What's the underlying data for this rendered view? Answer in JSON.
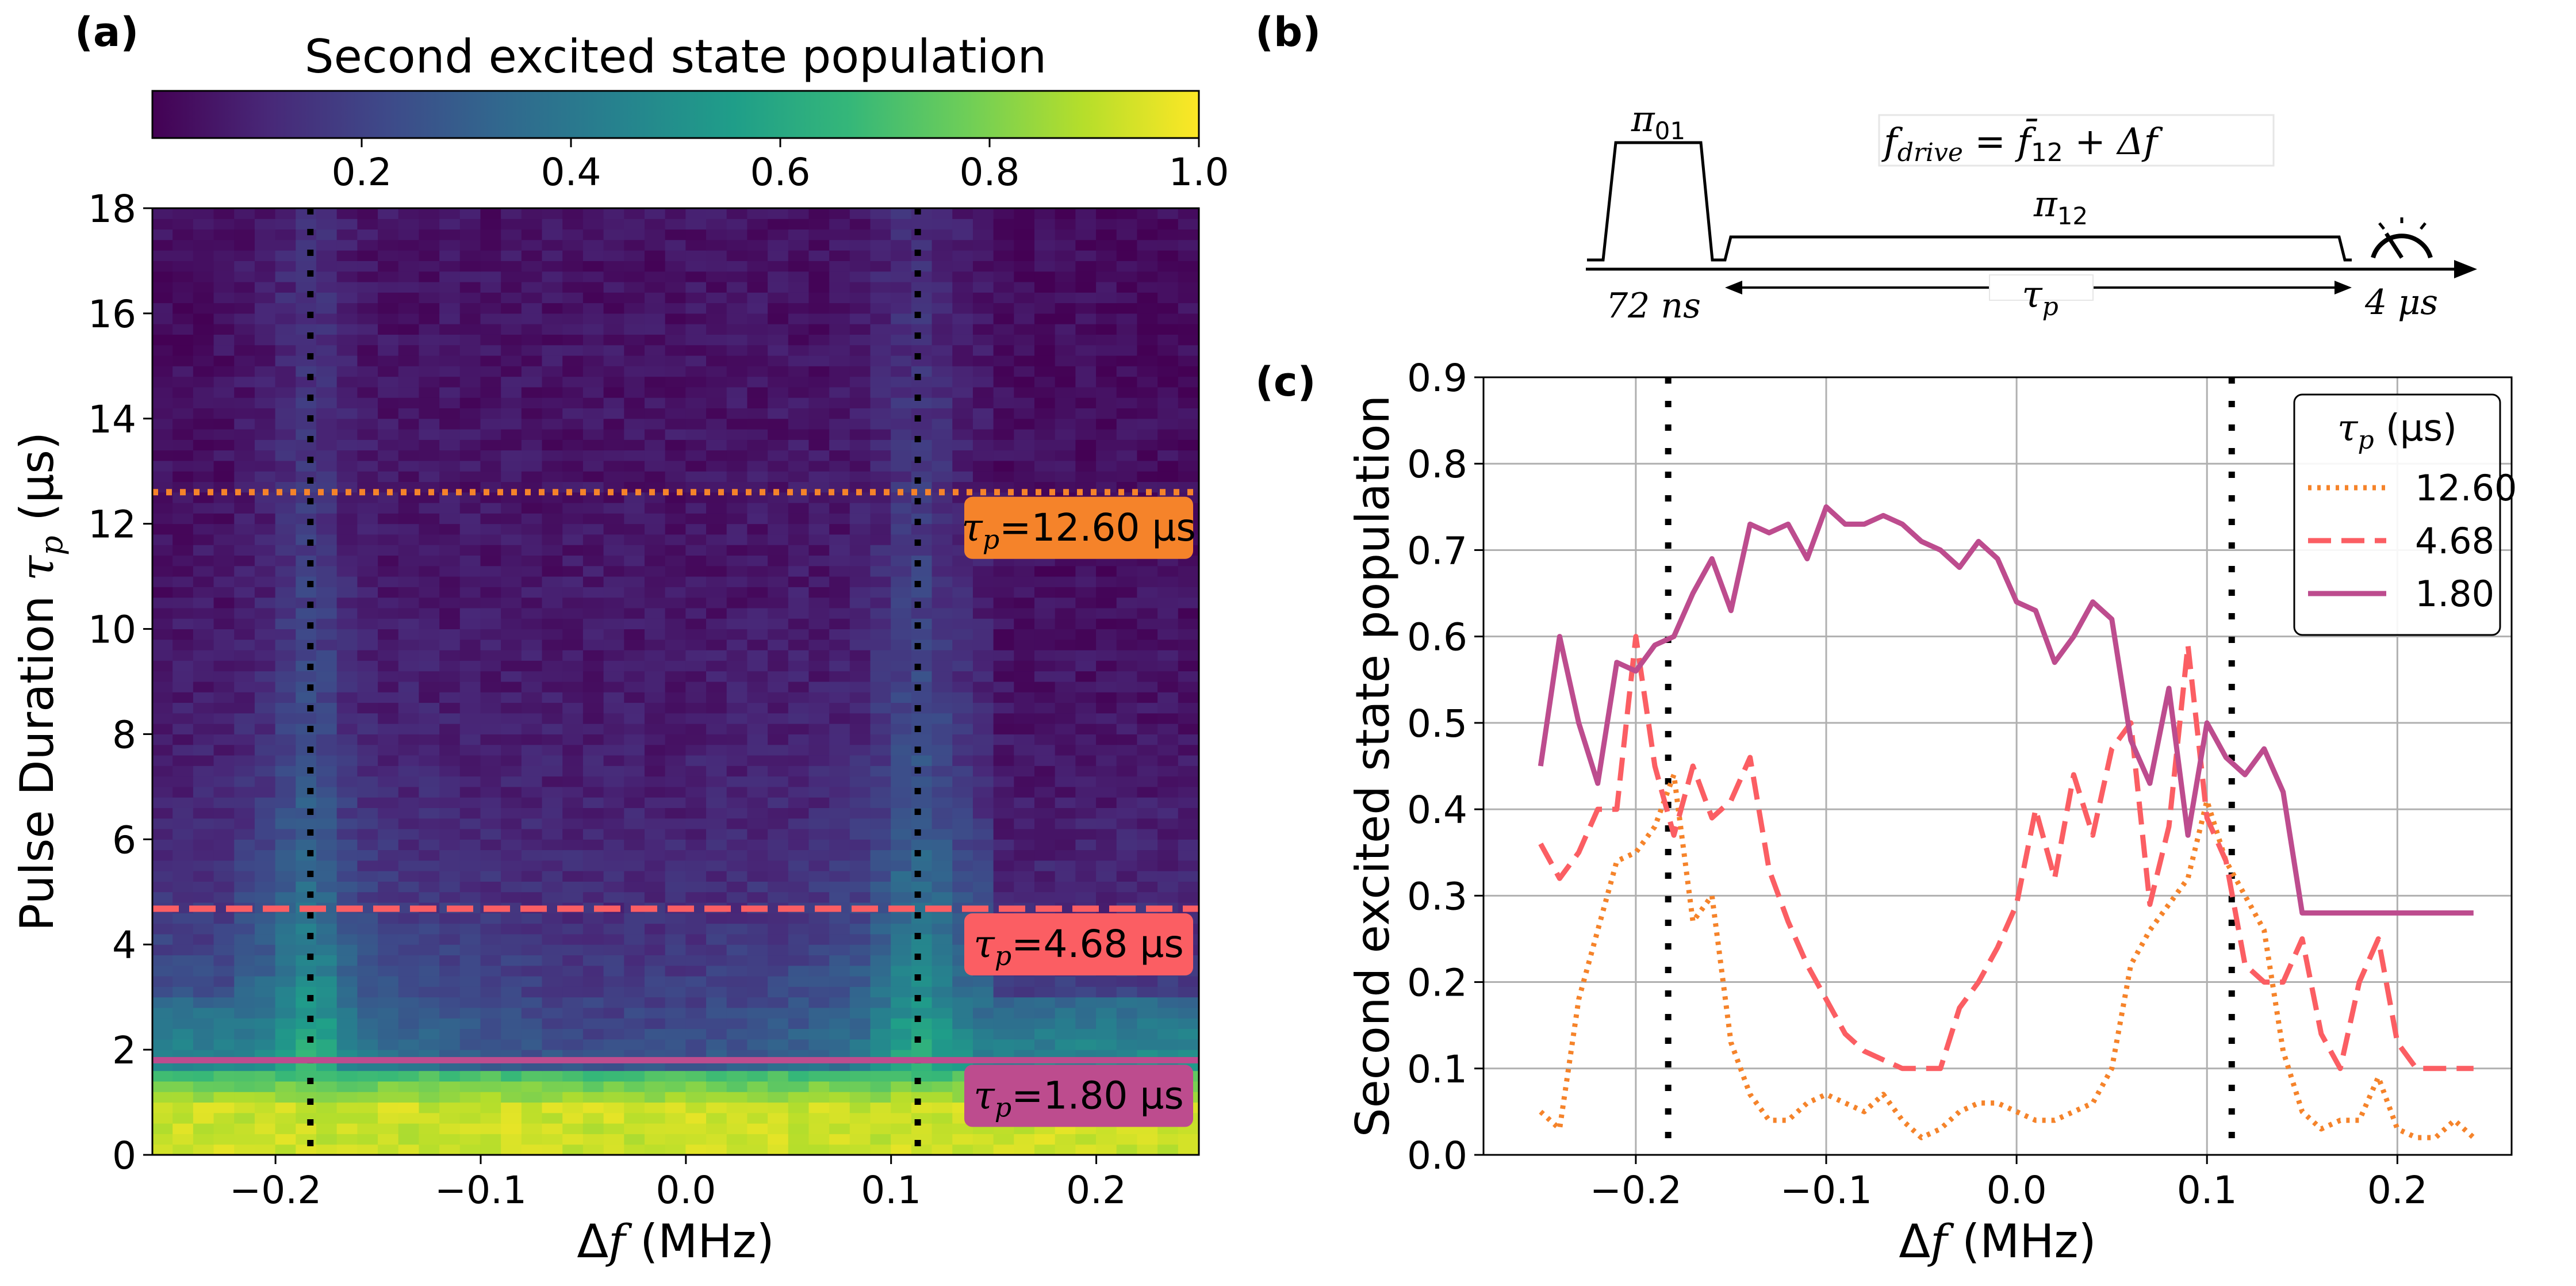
{
  "chart_data": [
    {
      "type": "heatmap",
      "panel_label": "(a)",
      "colorbar": {
        "title": "Second excited state population",
        "ticks": [
          "0.2",
          "0.4",
          "0.6",
          "0.8",
          "1.0"
        ],
        "tick_values": [
          0.2,
          0.4,
          0.6,
          0.8,
          1.0
        ],
        "range": [
          0.0,
          1.0
        ],
        "colormap": [
          "#440154",
          "#482878",
          "#3e4989",
          "#31688e",
          "#26828e",
          "#1f9e89",
          "#35b779",
          "#6ece58",
          "#b5de2b",
          "#fde725"
        ]
      },
      "xlabel_prefix": "Δ",
      "xlabel_var": "f",
      "xlabel_unit": "(MHz)",
      "ylabel_text": "Pulse Duration ",
      "ylabel_var": "τ",
      "ylabel_sub": "p",
      "ylabel_unit": "(µs)",
      "xlim": [
        -0.26,
        0.25
      ],
      "ylim": [
        0,
        18
      ],
      "x_ticks": [
        -0.2,
        -0.1,
        0.0,
        0.1,
        0.2
      ],
      "x_tick_labels": [
        "−0.2",
        "−0.1",
        "0.0",
        "0.1",
        "0.2"
      ],
      "y_ticks": [
        0,
        2,
        4,
        6,
        8,
        10,
        12,
        14,
        16,
        18
      ],
      "y_tick_labels": [
        "0",
        "2",
        "4",
        "6",
        "8",
        "10",
        "12",
        "14",
        "16",
        "18"
      ],
      "resonance_markers_mhz": [
        -0.183,
        0.113
      ],
      "cuts": [
        {
          "tau_us": 12.6,
          "label_prefix": "τ",
          "label_sub": "p",
          "label_value": "=12.60 µs",
          "color": "#f5832a",
          "style": "dotted"
        },
        {
          "tau_us": 4.68,
          "label_prefix": "τ",
          "label_sub": "p",
          "label_value": "=4.68 µs",
          "color": "#fb5e63",
          "style": "dashed"
        },
        {
          "tau_us": 1.8,
          "label_prefix": "τ",
          "label_sub": "p",
          "label_value": "=1.80 µs",
          "color": "#bd4c8e",
          "style": "solid"
        }
      ]
    },
    {
      "type": "line",
      "panel_label": "(c)",
      "xlabel_prefix": "Δ",
      "xlabel_var": "f",
      "xlabel_unit": "(MHz)",
      "ylabel": "Second excited state population",
      "xlim": [
        -0.28,
        0.26
      ],
      "ylim": [
        0.0,
        0.9
      ],
      "x_ticks": [
        -0.2,
        -0.1,
        0.0,
        0.1,
        0.2
      ],
      "x_tick_labels": [
        "−0.2",
        "−0.1",
        "0.0",
        "0.1",
        "0.2"
      ],
      "y_ticks": [
        0.0,
        0.1,
        0.2,
        0.3,
        0.4,
        0.5,
        0.6,
        0.7,
        0.8,
        0.9
      ],
      "y_tick_labels": [
        "0.0",
        "0.1",
        "0.2",
        "0.3",
        "0.4",
        "0.5",
        "0.6",
        "0.7",
        "0.8",
        "0.9"
      ],
      "grid": true,
      "resonance_markers_mhz": [
        -0.183,
        0.113
      ],
      "legend": {
        "title_var": "τ",
        "title_sub": "p",
        "title_unit": "(µs)",
        "position": "upper-right"
      },
      "x": [
        -0.25,
        -0.24,
        -0.23,
        -0.22,
        -0.21,
        -0.2,
        -0.19,
        -0.18,
        -0.17,
        -0.16,
        -0.15,
        -0.14,
        -0.13,
        -0.12,
        -0.11,
        -0.1,
        -0.09,
        -0.08,
        -0.07,
        -0.06,
        -0.05,
        -0.04,
        -0.03,
        -0.02,
        -0.01,
        0.0,
        0.01,
        0.02,
        0.03,
        0.04,
        0.05,
        0.06,
        0.07,
        0.08,
        0.09,
        0.1,
        0.11,
        0.12,
        0.13,
        0.14,
        0.15,
        0.16,
        0.17,
        0.18,
        0.19,
        0.2,
        0.21,
        0.22,
        0.23,
        0.24
      ],
      "series": [
        {
          "name": "12.60",
          "color": "#f5832a",
          "style": "dotted",
          "values": [
            0.05,
            0.03,
            0.18,
            0.26,
            0.34,
            0.35,
            0.38,
            0.44,
            0.27,
            0.3,
            0.13,
            0.07,
            0.04,
            0.04,
            0.06,
            0.07,
            0.06,
            0.05,
            0.07,
            0.04,
            0.02,
            0.03,
            0.05,
            0.06,
            0.06,
            0.05,
            0.04,
            0.04,
            0.05,
            0.06,
            0.1,
            0.22,
            0.26,
            0.29,
            0.32,
            0.41,
            0.34,
            0.3,
            0.26,
            0.12,
            0.05,
            0.03,
            0.04,
            0.04,
            0.09,
            0.03,
            0.02,
            0.02,
            0.04,
            0.02
          ]
        },
        {
          "name": "4.68",
          "color": "#fb5e63",
          "style": "dashed",
          "values": [
            0.36,
            0.32,
            0.35,
            0.4,
            0.4,
            0.6,
            0.45,
            0.37,
            0.45,
            0.39,
            0.41,
            0.46,
            0.33,
            0.27,
            0.22,
            0.18,
            0.14,
            0.12,
            0.11,
            0.1,
            0.1,
            0.1,
            0.17,
            0.2,
            0.24,
            0.29,
            0.4,
            0.32,
            0.44,
            0.37,
            0.47,
            0.5,
            0.29,
            0.38,
            0.59,
            0.39,
            0.34,
            0.22,
            0.2,
            0.2,
            0.25,
            0.14,
            0.1,
            0.2,
            0.25,
            0.13,
            0.1,
            0.1,
            0.1,
            0.1
          ]
        },
        {
          "name": "1.80",
          "color": "#bd4c8e",
          "style": "solid",
          "values": [
            0.45,
            0.6,
            0.5,
            0.43,
            0.57,
            0.56,
            0.59,
            0.6,
            0.65,
            0.69,
            0.63,
            0.73,
            0.72,
            0.73,
            0.69,
            0.75,
            0.73,
            0.73,
            0.74,
            0.73,
            0.71,
            0.7,
            0.68,
            0.71,
            0.69,
            0.64,
            0.63,
            0.57,
            0.6,
            0.64,
            0.62,
            0.48,
            0.43,
            0.54,
            0.37,
            0.5,
            0.46,
            0.44,
            0.47,
            0.42,
            0.28,
            0.28,
            0.28,
            0.28,
            0.28,
            0.28,
            0.28,
            0.28,
            0.28,
            0.28
          ]
        }
      ]
    }
  ],
  "diagram": {
    "panel_label": "(b)",
    "pi01": {
      "var": "π",
      "sub": "01"
    },
    "pi12": {
      "var": "π",
      "sub": "12"
    },
    "drive_equation": {
      "lhs": "f",
      "lhs_sub": "drive",
      "eq": " = ",
      "rhs_var": "f̄",
      "rhs_sub": "12",
      "rest": " + Δf"
    },
    "label_72ns": "72 ns",
    "tau": {
      "var": "τ",
      "sub": "p"
    },
    "label_4us": "4 μs"
  }
}
